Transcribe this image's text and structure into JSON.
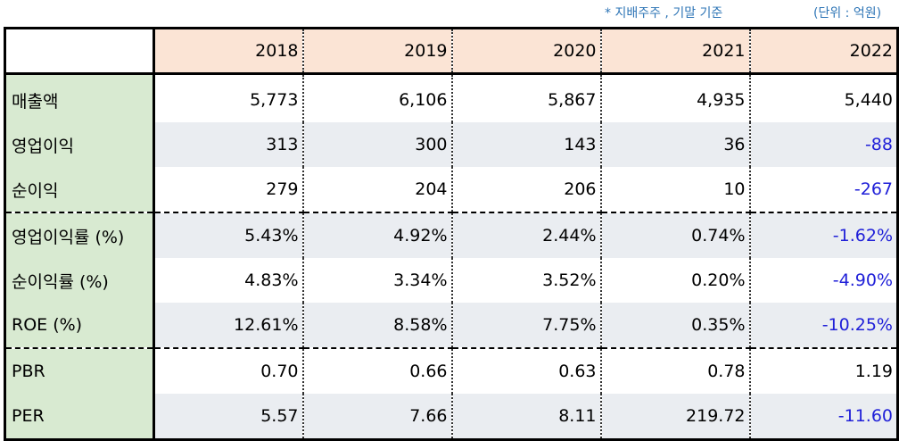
{
  "notes": {
    "basis": "* 지배주주 , 기말 기준",
    "unit": "(단위 : 억원)"
  },
  "columns": [
    "2018",
    "2019",
    "2020",
    "2021",
    "2022"
  ],
  "colors": {
    "header_bg": "#fbe4d5",
    "label_bg": "#d8ead1",
    "stripe_bg": "#eaedf1",
    "negative": "#1f1fd8",
    "note": "#2e75b6"
  },
  "rows": [
    {
      "label": "매출액",
      "values": [
        "5,773",
        "6,106",
        "5,867",
        "4,935",
        "5,440"
      ]
    },
    {
      "label": "영업이익",
      "values": [
        "313",
        "300",
        "143",
        "36",
        "-88"
      ]
    },
    {
      "label": "순이익",
      "values": [
        "279",
        "204",
        "206",
        "10",
        "-267"
      ]
    },
    {
      "label": "영업이익률 (%)",
      "values": [
        "5.43%",
        "4.92%",
        "2.44%",
        "0.74%",
        "-1.62%"
      ]
    },
    {
      "label": "순이익률 (%)",
      "values": [
        "4.83%",
        "3.34%",
        "3.52%",
        "0.20%",
        "-4.90%"
      ]
    },
    {
      "label": "ROE (%)",
      "values": [
        "12.61%",
        "8.58%",
        "7.75%",
        "0.35%",
        "-10.25%"
      ]
    },
    {
      "label": "PBR",
      "values": [
        "0.70",
        "0.66",
        "0.63",
        "0.78",
        "1.19"
      ]
    },
    {
      "label": "PER",
      "values": [
        "5.57",
        "7.66",
        "8.11",
        "219.72",
        "-11.60"
      ]
    }
  ]
}
